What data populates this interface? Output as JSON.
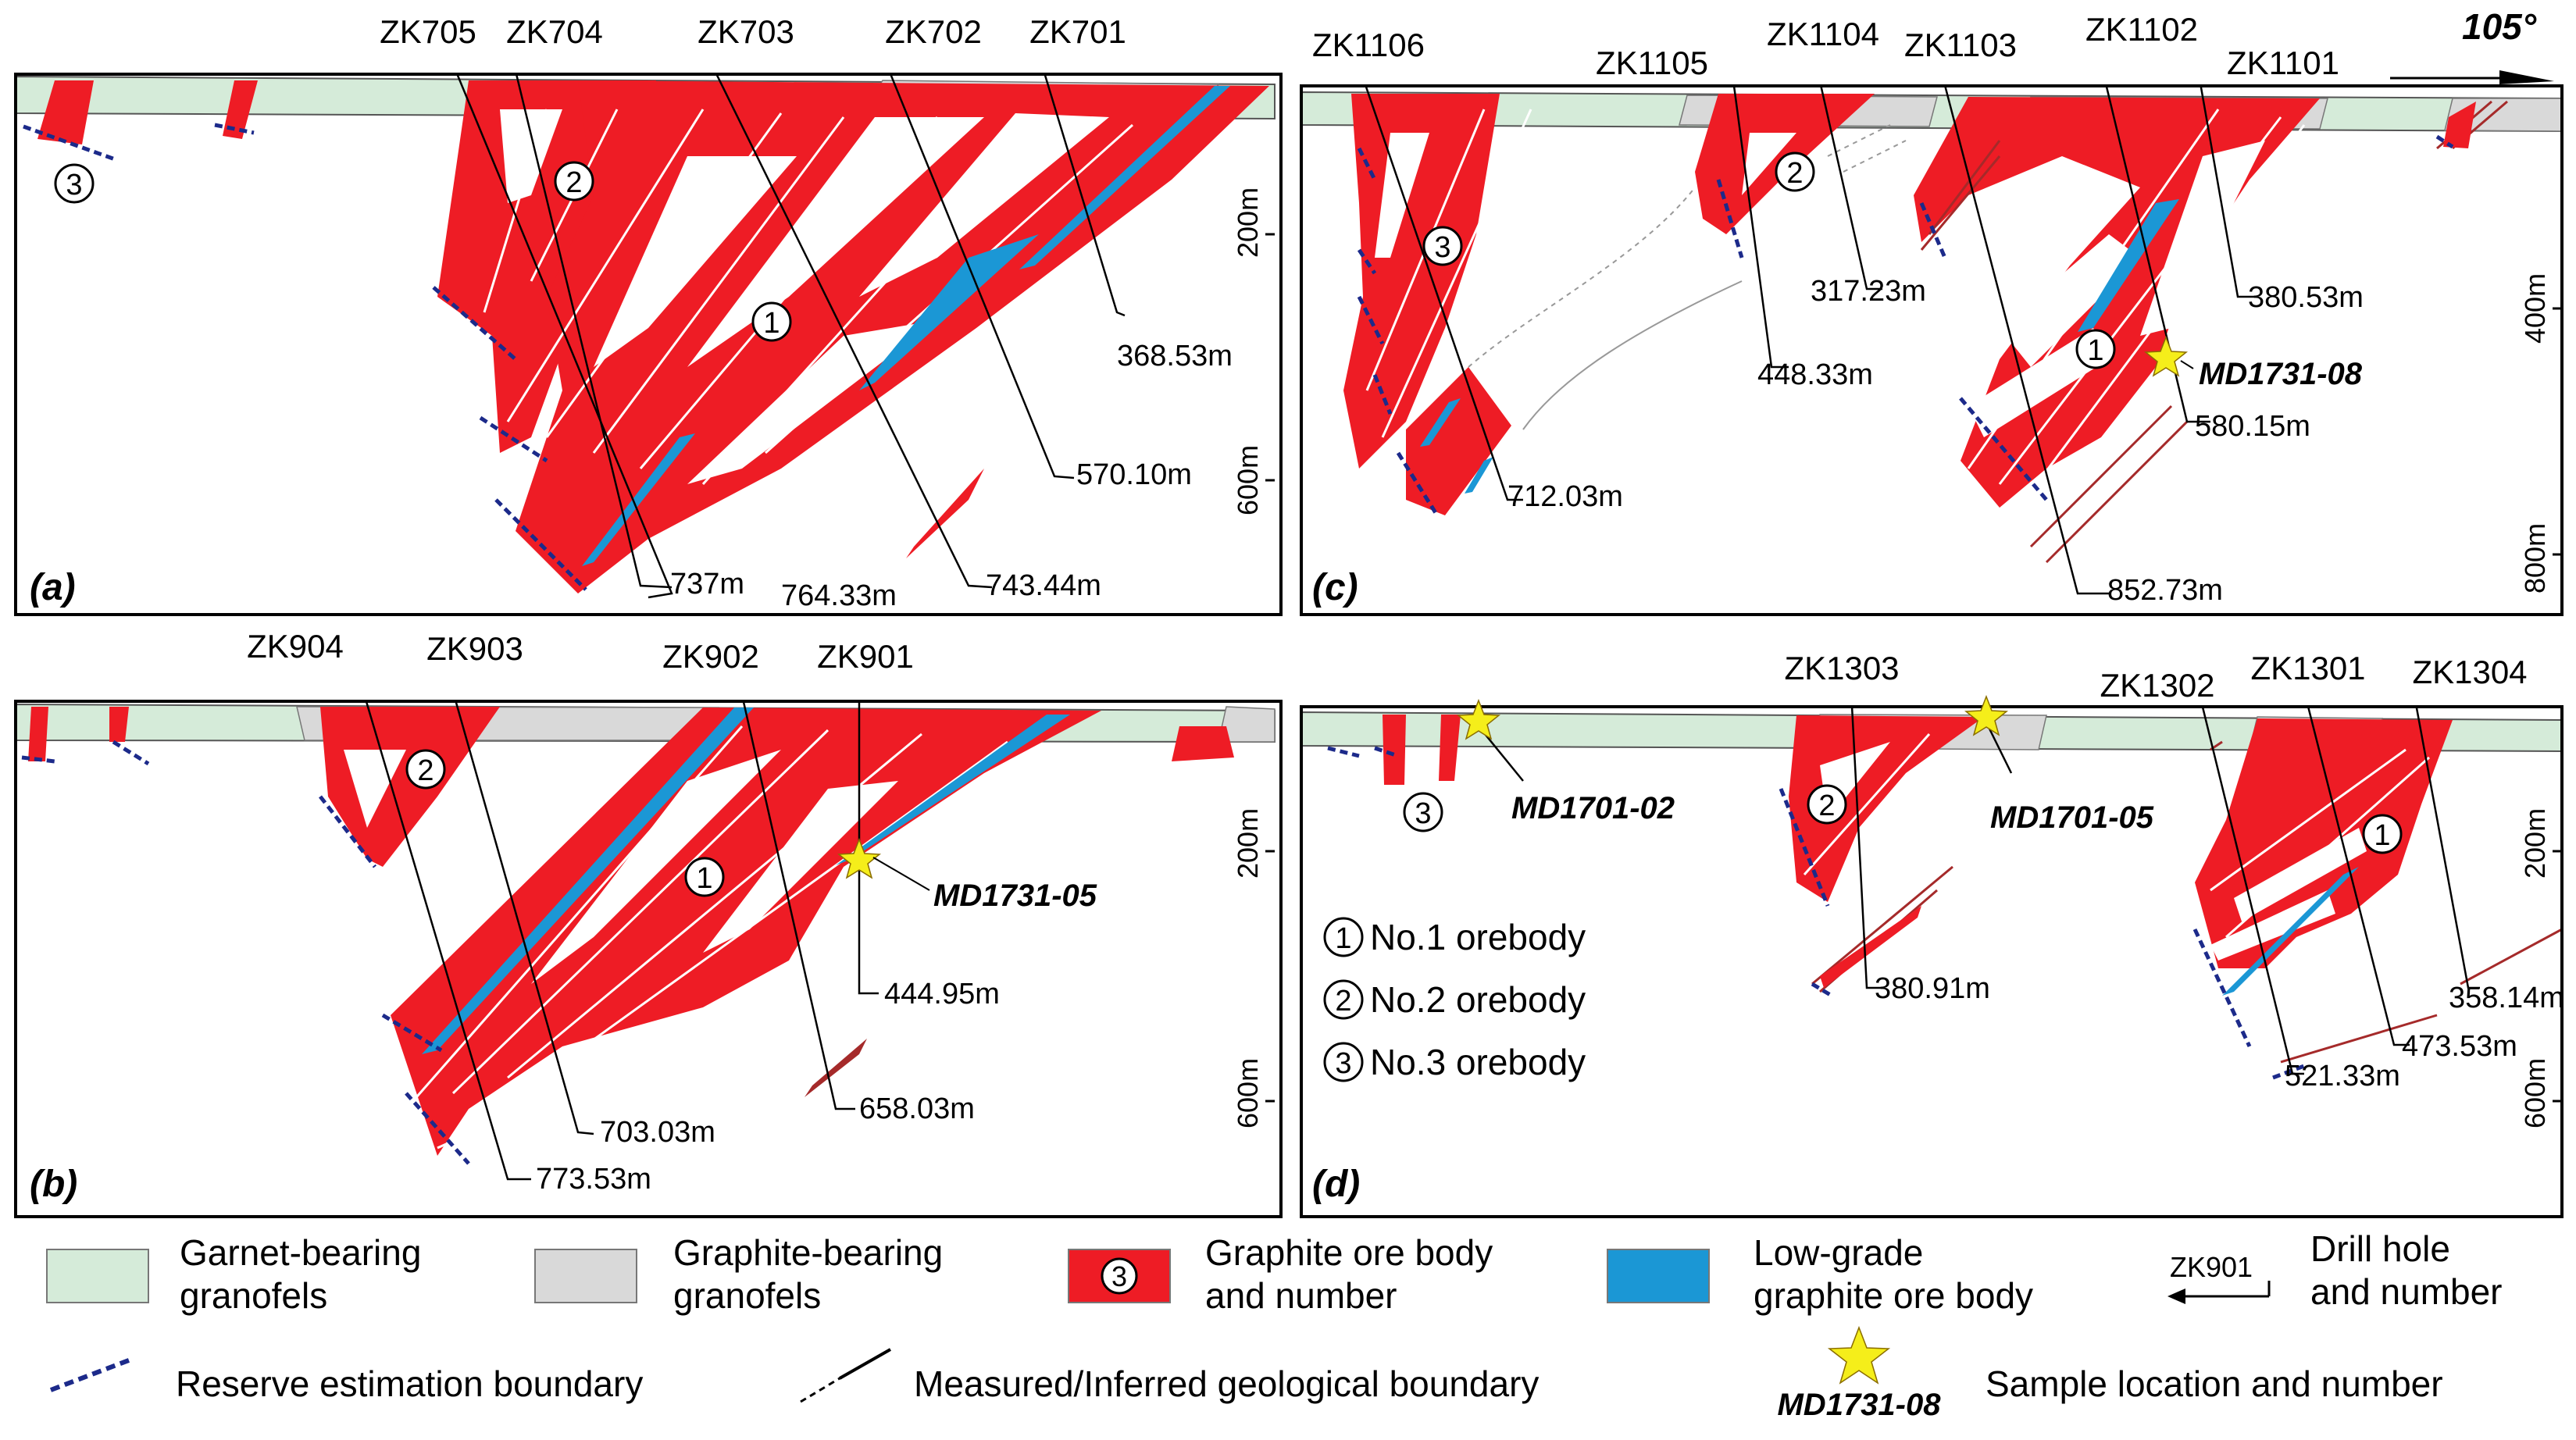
{
  "orientation": "105°",
  "colors": {
    "garnet": "#d5ebd9",
    "graphite_host": "#d9d9d9",
    "ore": "#ee1c25",
    "ore_line": "#a52a2a",
    "low_grade": "#1b97d5",
    "reserve": "#1c2a8a",
    "star": "#f5ee1a"
  },
  "panels": {
    "a": {
      "label": "(a)",
      "drill_holes": [
        "ZK705",
        "ZK704",
        "ZK703",
        "ZK702",
        "ZK701"
      ],
      "depths": [
        "737m",
        "764.33m",
        "743.44m",
        "570.10m",
        "368.53m"
      ],
      "orebodies": [
        "1",
        "2",
        "3"
      ],
      "scale": [
        "200m",
        "600m"
      ]
    },
    "b": {
      "label": "(b)",
      "drill_holes": [
        "ZK904",
        "ZK903",
        "ZK902",
        "ZK901"
      ],
      "depths": [
        "773.53m",
        "703.03m",
        "658.03m",
        "444.95m"
      ],
      "orebodies": [
        "1",
        "2"
      ],
      "sample": "MD1731-05",
      "scale": [
        "200m",
        "600m"
      ]
    },
    "c": {
      "label": "(c)",
      "drill_holes": [
        "ZK1106",
        "ZK1105",
        "ZK1104",
        "ZK1103",
        "ZK1102",
        "ZK1101"
      ],
      "depths": [
        "712.03m",
        "448.33m",
        "317.23m",
        "852.73m",
        "580.15m",
        "380.53m"
      ],
      "orebodies": [
        "1",
        "2",
        "3"
      ],
      "sample": "MD1731-08",
      "scale": [
        "400m",
        "800m"
      ]
    },
    "d": {
      "label": "(d)",
      "drill_holes": [
        "ZK1303",
        "ZK1302",
        "ZK1301",
        "ZK1304"
      ],
      "depths": [
        "380.91m",
        "521.33m",
        "473.53m",
        "358.14m"
      ],
      "orebodies": [
        "1",
        "2",
        "3"
      ],
      "samples": [
        "MD1701-02",
        "MD1701-05"
      ],
      "inset_legend": [
        "No.1 orebody",
        "No.2 orebody",
        "No.3 orebody"
      ],
      "scale": [
        "200m",
        "600m"
      ]
    }
  },
  "legend": {
    "garnet": "Garnet-bearing granofels",
    "garnet_l1": "Garnet-bearing",
    "garnet_l2": "granofels",
    "graphite_l1": "Graphite-bearing",
    "graphite_l2": "granofels",
    "ore_l1": "Graphite ore body",
    "ore_l2": "and number",
    "ore_num": "3",
    "low_l1": "Low-grade",
    "low_l2": "graphite ore body",
    "drill_sym": "ZK901",
    "drill_l1": "Drill hole",
    "drill_l2": "and number",
    "reserve": "Reserve estimation boundary",
    "boundary": "Measured/Inferred geological boundary",
    "sample_sym": "MD1731-08",
    "sample": "Sample location and number"
  }
}
